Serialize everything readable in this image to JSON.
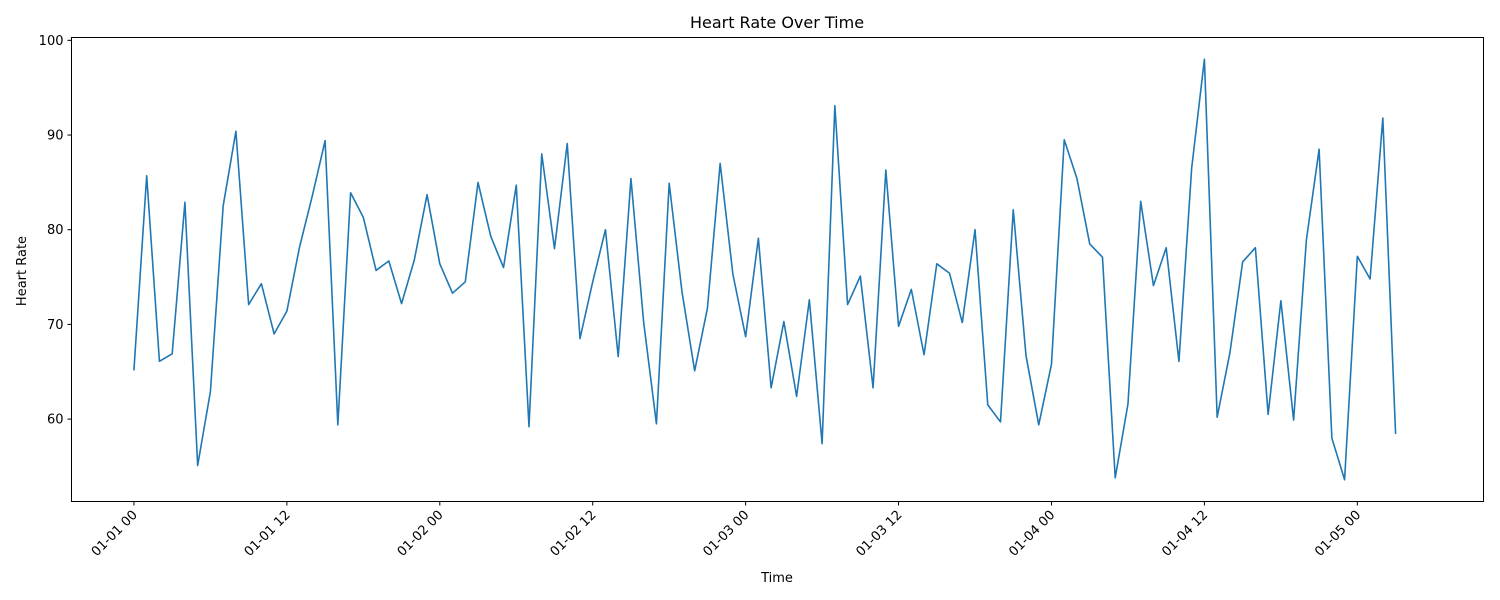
{
  "chart_data": {
    "type": "line",
    "title": "Heart Rate Over Time",
    "xlabel": "Time",
    "ylabel": "Heart Rate",
    "x_start": "2024-01-01 00:00",
    "x_step_hours": 1,
    "x_ticks": [
      {
        "hours": 0,
        "label": "01-01 00"
      },
      {
        "hours": 12,
        "label": "01-01 12"
      },
      {
        "hours": 24,
        "label": "01-02 00"
      },
      {
        "hours": 36,
        "label": "01-02 12"
      },
      {
        "hours": 48,
        "label": "01-03 00"
      },
      {
        "hours": 60,
        "label": "01-03 12"
      },
      {
        "hours": 72,
        "label": "01-04 00"
      },
      {
        "hours": 84,
        "label": "01-04 12"
      },
      {
        "hours": 96,
        "label": "01-05 00"
      }
    ],
    "xlim_hours": [
      -4.9,
      105.9
    ],
    "ylim": [
      51.3,
      100.3
    ],
    "y_ticks": [
      60,
      70,
      80,
      90,
      100
    ],
    "grid": false,
    "legend": "none",
    "series": [
      {
        "color": "#1f77b4",
        "values": [
          65.2,
          85.7,
          66.1,
          66.9,
          82.9,
          55.1,
          62.9,
          82.5,
          90.4,
          72.1,
          74.3,
          69.0,
          71.4,
          78.2,
          83.6,
          89.4,
          59.4,
          83.9,
          81.3,
          75.7,
          76.7,
          72.2,
          76.8,
          83.7,
          76.4,
          73.3,
          74.5,
          85.0,
          79.3,
          76.0,
          84.7,
          59.2,
          88.0,
          78.0,
          89.1,
          68.5,
          74.5,
          80.0,
          66.6,
          85.4,
          70.2,
          59.5,
          84.9,
          73.5,
          65.1,
          71.7,
          87.0,
          75.3,
          68.7,
          79.1,
          63.3,
          70.3,
          62.4,
          72.6,
          57.4,
          93.1,
          72.1,
          75.1,
          63.3,
          86.3,
          69.8,
          73.7,
          66.8,
          76.4,
          75.4,
          70.2,
          80.0,
          61.5,
          59.7,
          82.1,
          66.7,
          59.4,
          65.8,
          89.5,
          85.4,
          78.5,
          77.1,
          53.8,
          61.6,
          83.0,
          74.1,
          78.1,
          66.1,
          86.5,
          98.0,
          60.2,
          67.0,
          76.6,
          78.1,
          60.5,
          72.5,
          59.9,
          78.9,
          88.5,
          58.0,
          53.6,
          77.2,
          74.8,
          91.8,
          58.5
        ]
      }
    ]
  }
}
